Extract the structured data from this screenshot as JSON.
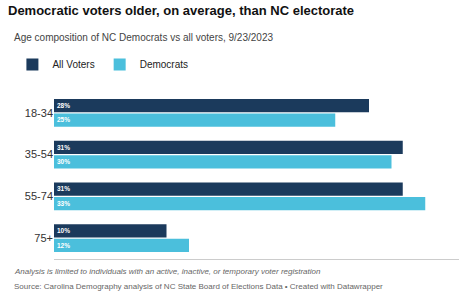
{
  "chart_data": {
    "type": "bar",
    "orientation": "horizontal",
    "title": "Democratic voters older, on average, than NC electorate",
    "subtitle": "Age composition of NC Democrats vs all voters, 9/23/2023",
    "annotations": [
      "Analysis is limited to individuals with an active, inactive, or temporary voter registration",
      "Source: Carolina Demography analysis of NC State Board of Elections Data • Created with Datawrapper"
    ],
    "categories": [
      "18-34",
      "35-54",
      "55-74",
      "75+"
    ],
    "series": [
      {
        "name": "All Voters",
        "color": "#1b3a5c",
        "values": [
          28,
          31,
          31,
          10
        ],
        "value_labels": [
          "28%",
          "31%",
          "31%",
          "10%"
        ]
      },
      {
        "name": "Democrats",
        "color": "#4bbfdc",
        "values": [
          25,
          30,
          33,
          12
        ],
        "value_labels": [
          "25%",
          "30%",
          "33%",
          "12%"
        ]
      }
    ],
    "xlim": [
      0,
      36
    ],
    "data_labels": true,
    "tick_labels": "y",
    "grid": false,
    "legend": "top left"
  }
}
